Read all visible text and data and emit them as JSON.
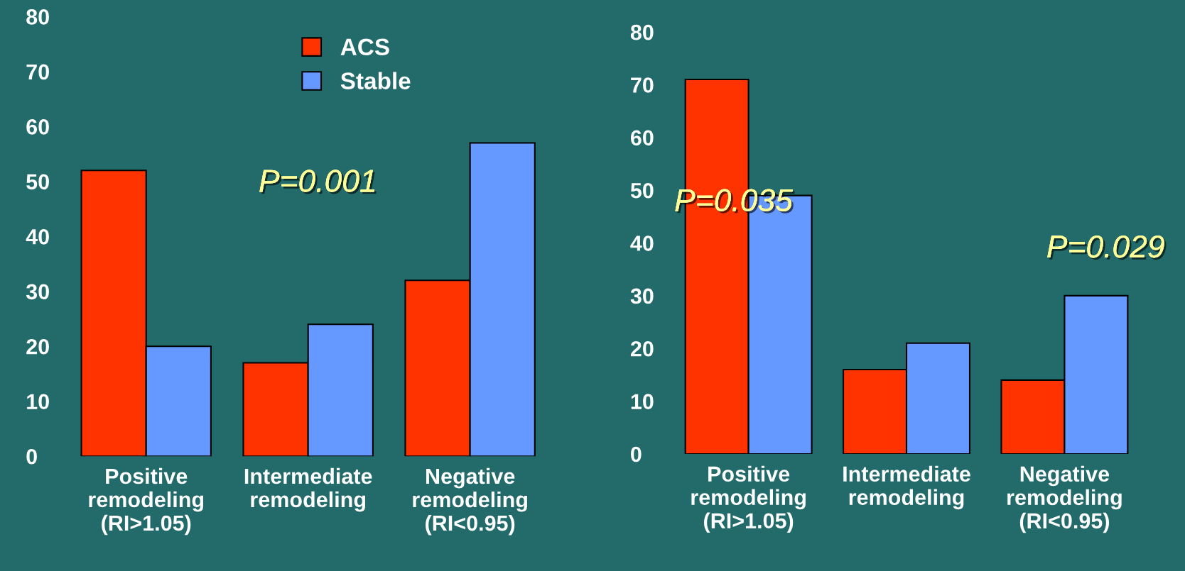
{
  "chart_data": [
    {
      "type": "bar",
      "categories": [
        "Positive\nremodeling\n(RI>1.05)",
        "Intermediate\nremodeling",
        "Negative\nremodeling\n(RI<0.95)"
      ],
      "series": [
        {
          "name": "ACS",
          "color": "#ff3300",
          "values": [
            52,
            17,
            32
          ]
        },
        {
          "name": "Stable",
          "color": "#6699ff",
          "values": [
            20,
            24,
            57
          ]
        }
      ],
      "ylim": [
        0,
        80
      ],
      "yticks": [
        0,
        10,
        20,
        30,
        40,
        50,
        60,
        70,
        80
      ],
      "grid": false,
      "legend": "top",
      "annotations": [
        "P=0.001"
      ]
    },
    {
      "type": "bar",
      "categories": [
        "Positive\nremodeling\n(RI>1.05)",
        "Intermediate\nremodeling",
        "Negative\nremodeling\n(RI<0.95)"
      ],
      "series": [
        {
          "color": "#ff3300",
          "values": [
            71,
            16,
            14
          ]
        },
        {
          "color": "#6699ff",
          "values": [
            49,
            21,
            30
          ]
        }
      ],
      "ylim": [
        0,
        80
      ],
      "yticks": [
        0,
        10,
        20,
        30,
        40,
        50,
        60,
        70,
        80
      ],
      "grid": false,
      "legend": false,
      "annotations": [
        "P=0.035",
        "P=0.029"
      ]
    }
  ]
}
